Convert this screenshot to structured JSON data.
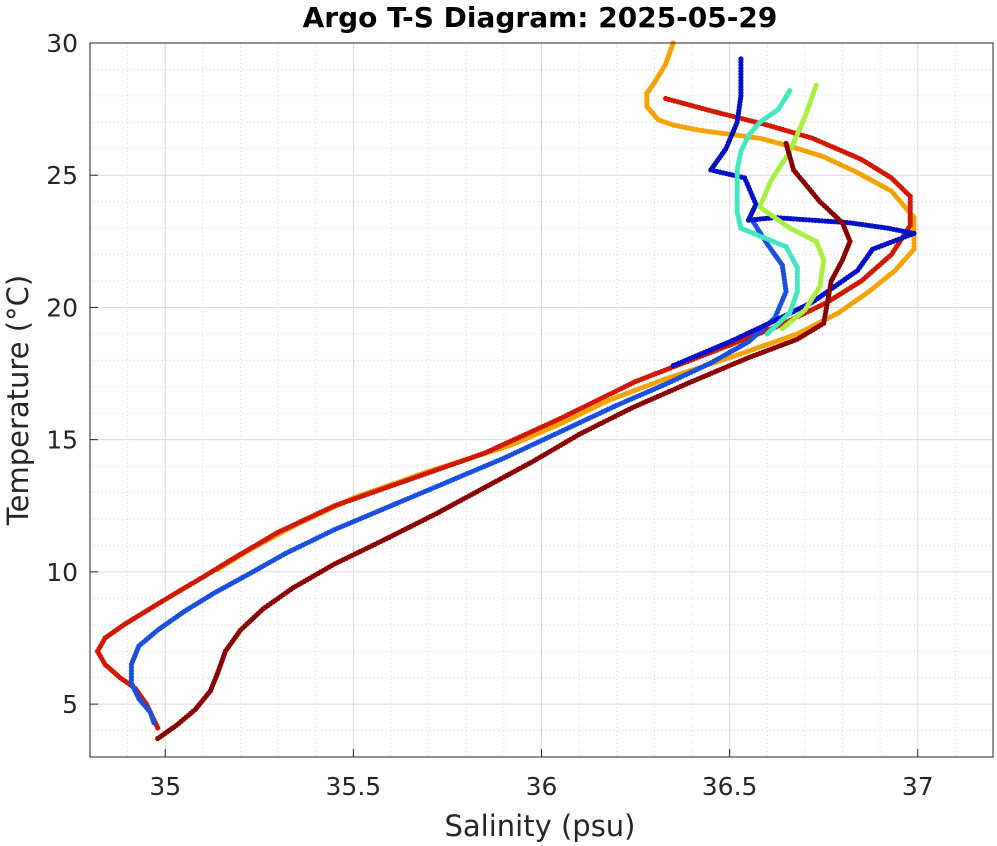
{
  "chart_data": {
    "type": "scatter",
    "title": "Argo T-S Diagram: 2025-05-29",
    "xlabel": "Salinity (psu)",
    "ylabel": "Temperature (°C)",
    "xlim": [
      34.8,
      37.2
    ],
    "ylim": [
      3,
      30
    ],
    "xticks": [
      35,
      35.5,
      36,
      36.5,
      37
    ],
    "xtick_labels": [
      "35",
      "35.5",
      "36",
      "36.5",
      "37"
    ],
    "yticks": [
      5,
      10,
      15,
      20,
      25,
      30
    ],
    "ytick_labels": [
      "5",
      "10",
      "15",
      "20",
      "25",
      "30"
    ],
    "minor_x_step": 0.1,
    "minor_y_step": 1,
    "grid": true,
    "minor_grid": true,
    "legend": "none",
    "series": [
      {
        "color": "#f5a300",
        "points": [
          [
            36.35,
            30
          ],
          [
            36.33,
            29.2
          ],
          [
            36.3,
            28.5
          ],
          [
            36.28,
            28.1
          ],
          [
            36.28,
            27.6
          ],
          [
            36.31,
            27.1
          ],
          [
            36.35,
            26.9
          ],
          [
            36.42,
            26.7
          ],
          [
            36.5,
            26.55
          ],
          [
            36.58,
            26.4
          ],
          [
            36.66,
            26.1
          ],
          [
            36.75,
            25.7
          ],
          [
            36.84,
            25.1
          ],
          [
            36.93,
            24.4
          ],
          [
            36.99,
            23.4
          ],
          [
            36.99,
            22.2
          ],
          [
            36.94,
            21.4
          ],
          [
            36.87,
            20.6
          ],
          [
            36.79,
            19.8
          ],
          [
            36.68,
            19.0
          ],
          [
            36.52,
            18.2
          ],
          [
            36.33,
            17.3
          ],
          [
            36.18,
            16.5
          ],
          [
            36.05,
            15.6
          ],
          [
            35.92,
            14.8
          ],
          [
            35.7,
            13.8
          ],
          [
            35.5,
            12.8
          ],
          [
            35.35,
            11.8
          ],
          [
            35.22,
            10.8
          ],
          [
            35.14,
            10.1
          ]
        ]
      },
      {
        "color": "#d11800",
        "points": [
          [
            36.33,
            27.9
          ],
          [
            36.46,
            27.4
          ],
          [
            36.6,
            26.9
          ],
          [
            36.72,
            26.4
          ],
          [
            36.85,
            25.6
          ],
          [
            36.93,
            24.9
          ],
          [
            36.98,
            24.2
          ],
          [
            36.98,
            23.1
          ],
          [
            36.93,
            22.0
          ],
          [
            36.85,
            21.0
          ],
          [
            36.76,
            20.2
          ],
          [
            36.63,
            19.3
          ],
          [
            36.45,
            18.3
          ],
          [
            36.25,
            17.2
          ],
          [
            36.05,
            15.8
          ],
          [
            35.85,
            14.5
          ],
          [
            35.65,
            13.5
          ],
          [
            35.45,
            12.5
          ],
          [
            35.3,
            11.5
          ],
          [
            35.18,
            10.5
          ],
          [
            35.1,
            9.8
          ],
          [
            35.04,
            9.3
          ],
          [
            34.97,
            8.7
          ],
          [
            34.89,
            8.0
          ],
          [
            34.84,
            7.5
          ],
          [
            34.82,
            7.0
          ],
          [
            34.84,
            6.5
          ],
          [
            34.88,
            6.0
          ],
          [
            34.92,
            5.6
          ],
          [
            34.95,
            5.0
          ],
          [
            34.97,
            4.4
          ],
          [
            34.98,
            4.1
          ]
        ]
      },
      {
        "color": "#1a4fe0",
        "points": [
          [
            34.97,
            4.3
          ],
          [
            34.96,
            4.7
          ],
          [
            34.93,
            5.2
          ],
          [
            34.91,
            5.8
          ],
          [
            34.91,
            6.5
          ],
          [
            34.93,
            7.2
          ],
          [
            34.98,
            7.8
          ],
          [
            35.05,
            8.5
          ],
          [
            35.13,
            9.2
          ],
          [
            35.22,
            9.9
          ],
          [
            35.32,
            10.7
          ],
          [
            35.45,
            11.6
          ],
          [
            35.6,
            12.5
          ],
          [
            35.75,
            13.4
          ],
          [
            35.9,
            14.3
          ],
          [
            36.05,
            15.3
          ],
          [
            36.2,
            16.3
          ],
          [
            36.33,
            17.1
          ],
          [
            36.45,
            17.9
          ],
          [
            36.55,
            18.7
          ],
          [
            36.62,
            19.6
          ],
          [
            36.65,
            20.6
          ],
          [
            36.64,
            21.6
          ],
          [
            36.6,
            22.4
          ],
          [
            36.56,
            23.3
          ]
        ]
      },
      {
        "color": "#0010c8",
        "points": [
          [
            36.53,
            29.4
          ],
          [
            36.53,
            28.0
          ],
          [
            36.52,
            27.0
          ],
          [
            36.49,
            26.0
          ],
          [
            36.45,
            25.2
          ],
          [
            36.54,
            24.9
          ],
          [
            36.57,
            23.9
          ],
          [
            36.55,
            23.3
          ],
          [
            36.62,
            23.4
          ],
          [
            36.72,
            23.3
          ],
          [
            36.82,
            23.2
          ],
          [
            36.92,
            23.0
          ],
          [
            36.99,
            22.8
          ],
          [
            36.88,
            22.2
          ],
          [
            36.84,
            21.4
          ],
          [
            36.78,
            20.8
          ],
          [
            36.72,
            20.2
          ],
          [
            36.62,
            19.5
          ],
          [
            36.5,
            18.7
          ],
          [
            36.35,
            17.8
          ]
        ]
      },
      {
        "color": "#40e8c0",
        "points": [
          [
            36.66,
            28.2
          ],
          [
            36.63,
            27.5
          ],
          [
            36.58,
            27.0
          ],
          [
            36.55,
            26.5
          ],
          [
            36.53,
            25.9
          ],
          [
            36.52,
            25.2
          ],
          [
            36.52,
            24.4
          ],
          [
            36.52,
            23.6
          ],
          [
            36.53,
            23.0
          ],
          [
            36.58,
            22.7
          ],
          [
            36.65,
            22.3
          ],
          [
            36.68,
            21.5
          ],
          [
            36.68,
            20.6
          ],
          [
            36.66,
            19.8
          ],
          [
            36.6,
            19.0
          ]
        ]
      },
      {
        "color": "#a8f040",
        "points": [
          [
            36.73,
            28.4
          ],
          [
            36.7,
            27.2
          ],
          [
            36.66,
            25.9
          ],
          [
            36.61,
            24.8
          ],
          [
            36.58,
            23.8
          ],
          [
            36.66,
            23.0
          ],
          [
            36.73,
            22.5
          ],
          [
            36.75,
            21.8
          ],
          [
            36.74,
            20.8
          ],
          [
            36.7,
            19.9
          ],
          [
            36.64,
            19.2
          ]
        ]
      },
      {
        "color": "#8b0000",
        "points": [
          [
            34.98,
            3.7
          ],
          [
            35.03,
            4.2
          ],
          [
            35.08,
            4.8
          ],
          [
            35.12,
            5.5
          ],
          [
            35.14,
            6.2
          ],
          [
            35.16,
            7.0
          ],
          [
            35.2,
            7.8
          ],
          [
            35.26,
            8.6
          ],
          [
            35.34,
            9.4
          ],
          [
            35.45,
            10.3
          ],
          [
            35.58,
            11.2
          ],
          [
            35.72,
            12.2
          ],
          [
            35.85,
            13.2
          ],
          [
            35.98,
            14.2
          ],
          [
            36.1,
            15.2
          ],
          [
            36.24,
            16.2
          ],
          [
            36.4,
            17.2
          ],
          [
            36.55,
            18.1
          ],
          [
            36.68,
            18.8
          ],
          [
            36.75,
            19.4
          ],
          [
            36.76,
            20.2
          ],
          [
            36.77,
            21.0
          ],
          [
            36.8,
            21.8
          ],
          [
            36.82,
            22.5
          ],
          [
            36.8,
            23.2
          ],
          [
            36.74,
            24.0
          ],
          [
            36.67,
            25.2
          ],
          [
            36.65,
            26.2
          ]
        ]
      }
    ]
  }
}
